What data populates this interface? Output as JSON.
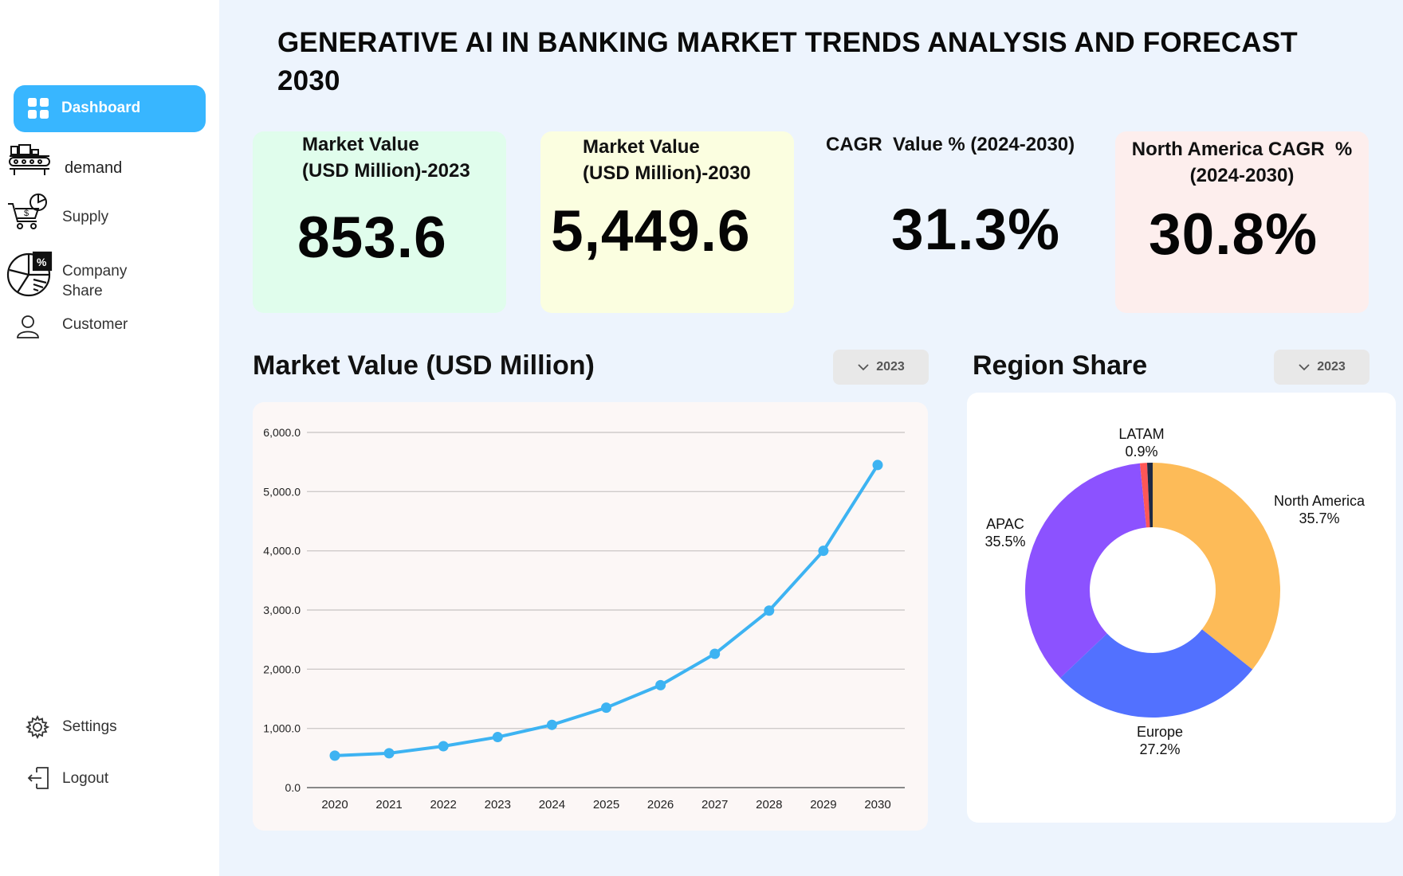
{
  "sidebar": {
    "items": [
      {
        "label": "Dashboard",
        "icon": "grid-icon",
        "active": true
      },
      {
        "label": "demand",
        "icon": "factory-conveyor-icon"
      },
      {
        "label": "Supply",
        "icon": "supply-cart-icon"
      },
      {
        "label": "Company\nShare",
        "label_line1": "Company",
        "label_line2": "Share",
        "icon": "pie-percent-icon"
      },
      {
        "label": "Customer",
        "icon": "user-icon"
      }
    ],
    "bottom": [
      {
        "label": "Settings",
        "icon": "gear-icon"
      },
      {
        "label": "Logout",
        "icon": "logout-icon"
      }
    ]
  },
  "header": {
    "title_line1": "GENERATIVE AI IN BANKING MARKET TRENDS ANALYSIS AND FORECAST",
    "title_line2": "2030"
  },
  "cards": [
    {
      "label_line1": "Market Value",
      "label_line2": "(USD Million)-2023",
      "value": "853.6",
      "bg": "#e0fdec"
    },
    {
      "label_line1": "Market Value",
      "label_line2": "(USD Million)-2030",
      "value": "5,449.6",
      "bg": "#fbfee0"
    },
    {
      "label_line1": "CAGR  Value % (2024-2030)",
      "label_line2": "",
      "value": "31.3%",
      "bg": "transparent"
    },
    {
      "label_line1": "North America CAGR  %",
      "label_line2": "(2024-2030)",
      "value": "30.8%",
      "bg": "#fdeeed"
    }
  ],
  "market_section": {
    "title": "Market Value (USD Million)",
    "year": "2023"
  },
  "region_section": {
    "title": "Region Share",
    "year": "2023"
  },
  "colors": {
    "accent": "#38b6ff",
    "line": "#3db3f2",
    "north_america": "#fdbb58",
    "europe": "#5271ff",
    "apac": "#8c52ff",
    "latam": "#ff5757",
    "other": "#1f2a44"
  },
  "chart_data": [
    {
      "type": "line",
      "title": "Market Value (USD Million)",
      "x": [
        "2020",
        "2021",
        "2022",
        "2023",
        "2024",
        "2025",
        "2026",
        "2027",
        "2028",
        "2029",
        "2030"
      ],
      "series": [
        {
          "values": [
            540,
            580,
            700,
            853.6,
            1060,
            1350,
            1730,
            2260,
            2990,
            4000,
            5449.6
          ]
        }
      ],
      "y_ticks": [
        "0.0",
        "1,000.0",
        "2,000.0",
        "3,000.0",
        "4,000.0",
        "5,000.0",
        "6,000.0"
      ],
      "ylim": [
        0,
        6000
      ],
      "grid": true
    },
    {
      "type": "pie",
      "title": "Region Share",
      "slices": [
        {
          "label": "North America",
          "value": 35.7,
          "value_label": "35.7%"
        },
        {
          "label": "Europe",
          "value": 27.2,
          "value_label": "27.2%"
        },
        {
          "label": "APAC",
          "value": 35.5,
          "value_label": "35.5%"
        },
        {
          "label": "LATAM",
          "value": 0.9,
          "value_label": "0.9%"
        },
        {
          "label": "",
          "value": 0.7,
          "value_label": ""
        }
      ]
    }
  ]
}
